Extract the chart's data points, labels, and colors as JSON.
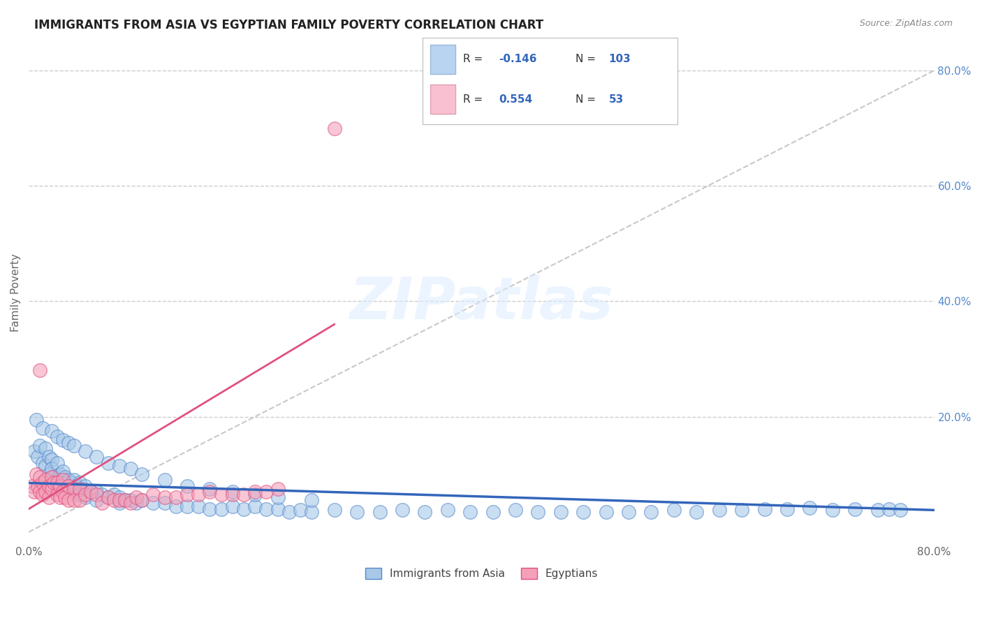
{
  "title": "IMMIGRANTS FROM ASIA VS EGYPTIAN FAMILY POVERTY CORRELATION CHART",
  "source": "Source: ZipAtlas.com",
  "ylabel": "Family Poverty",
  "xlim": [
    0.0,
    0.8
  ],
  "ylim": [
    -0.02,
    0.85
  ],
  "blue_color": "#a8c8e8",
  "pink_color": "#f4a0b8",
  "blue_edge_color": "#5588cc",
  "pink_edge_color": "#e05080",
  "blue_line_color": "#3366bb",
  "pink_line_color": "#e05080",
  "diagonal_color": "#c8c8c8",
  "background_color": "#ffffff",
  "grid_color": "#cccccc",
  "ytick_color": "#5588cc",
  "legend_box_blue": "#b8d4f0",
  "legend_box_pink": "#f8c0d0",
  "legend_text_color": "#3366bb",
  "blue_x": [
    0.005,
    0.008,
    0.01,
    0.012,
    0.015,
    0.015,
    0.018,
    0.018,
    0.02,
    0.02,
    0.022,
    0.025,
    0.025,
    0.028,
    0.028,
    0.03,
    0.03,
    0.032,
    0.035,
    0.035,
    0.038,
    0.04,
    0.04,
    0.042,
    0.045,
    0.045,
    0.048,
    0.05,
    0.05,
    0.055,
    0.06,
    0.06,
    0.065,
    0.07,
    0.075,
    0.08,
    0.08,
    0.085,
    0.09,
    0.095,
    0.1,
    0.11,
    0.12,
    0.13,
    0.14,
    0.15,
    0.16,
    0.17,
    0.18,
    0.19,
    0.2,
    0.21,
    0.22,
    0.23,
    0.24,
    0.25,
    0.27,
    0.29,
    0.31,
    0.33,
    0.35,
    0.37,
    0.39,
    0.41,
    0.43,
    0.45,
    0.47,
    0.49,
    0.51,
    0.53,
    0.55,
    0.57,
    0.59,
    0.61,
    0.63,
    0.65,
    0.67,
    0.69,
    0.71,
    0.73,
    0.75,
    0.76,
    0.77,
    0.007,
    0.012,
    0.02,
    0.025,
    0.03,
    0.035,
    0.04,
    0.05,
    0.06,
    0.07,
    0.08,
    0.09,
    0.1,
    0.12,
    0.14,
    0.16,
    0.18,
    0.2,
    0.22,
    0.25
  ],
  "blue_y": [
    0.14,
    0.13,
    0.15,
    0.12,
    0.145,
    0.115,
    0.13,
    0.1,
    0.125,
    0.11,
    0.095,
    0.12,
    0.09,
    0.1,
    0.08,
    0.105,
    0.085,
    0.095,
    0.09,
    0.075,
    0.085,
    0.09,
    0.07,
    0.08,
    0.085,
    0.065,
    0.075,
    0.08,
    0.06,
    0.07,
    0.07,
    0.055,
    0.065,
    0.06,
    0.065,
    0.06,
    0.05,
    0.055,
    0.055,
    0.05,
    0.055,
    0.05,
    0.05,
    0.045,
    0.045,
    0.045,
    0.04,
    0.04,
    0.045,
    0.04,
    0.045,
    0.04,
    0.04,
    0.035,
    0.038,
    0.035,
    0.038,
    0.035,
    0.035,
    0.038,
    0.035,
    0.038,
    0.035,
    0.035,
    0.038,
    0.035,
    0.035,
    0.035,
    0.035,
    0.035,
    0.035,
    0.038,
    0.035,
    0.038,
    0.038,
    0.04,
    0.04,
    0.042,
    0.038,
    0.04,
    0.038,
    0.04,
    0.038,
    0.195,
    0.18,
    0.175,
    0.165,
    0.16,
    0.155,
    0.15,
    0.14,
    0.13,
    0.12,
    0.115,
    0.11,
    0.1,
    0.09,
    0.08,
    0.075,
    0.07,
    0.065,
    0.06,
    0.055
  ],
  "pink_x": [
    0.003,
    0.005,
    0.007,
    0.008,
    0.01,
    0.01,
    0.012,
    0.012,
    0.015,
    0.015,
    0.018,
    0.018,
    0.02,
    0.02,
    0.022,
    0.025,
    0.025,
    0.028,
    0.028,
    0.03,
    0.03,
    0.032,
    0.035,
    0.035,
    0.04,
    0.04,
    0.045,
    0.045,
    0.05,
    0.055,
    0.06,
    0.065,
    0.07,
    0.075,
    0.08,
    0.085,
    0.09,
    0.095,
    0.1,
    0.11,
    0.12,
    0.13,
    0.14,
    0.15,
    0.16,
    0.17,
    0.18,
    0.19,
    0.2,
    0.21,
    0.22,
    0.27,
    0.01
  ],
  "pink_y": [
    0.08,
    0.07,
    0.1,
    0.08,
    0.095,
    0.07,
    0.085,
    0.065,
    0.09,
    0.07,
    0.08,
    0.06,
    0.095,
    0.075,
    0.085,
    0.085,
    0.065,
    0.08,
    0.06,
    0.09,
    0.07,
    0.06,
    0.08,
    0.055,
    0.075,
    0.055,
    0.075,
    0.055,
    0.065,
    0.07,
    0.065,
    0.05,
    0.06,
    0.055,
    0.055,
    0.055,
    0.05,
    0.06,
    0.055,
    0.065,
    0.06,
    0.06,
    0.065,
    0.065,
    0.07,
    0.065,
    0.065,
    0.065,
    0.07,
    0.07,
    0.075,
    0.7,
    0.28
  ],
  "blue_line_x0": 0.0,
  "blue_line_x1": 0.8,
  "blue_line_y0": 0.085,
  "blue_line_y1": 0.038,
  "pink_line_x0": 0.0,
  "pink_line_x1": 0.27,
  "pink_line_y0": 0.04,
  "pink_line_y1": 0.36
}
